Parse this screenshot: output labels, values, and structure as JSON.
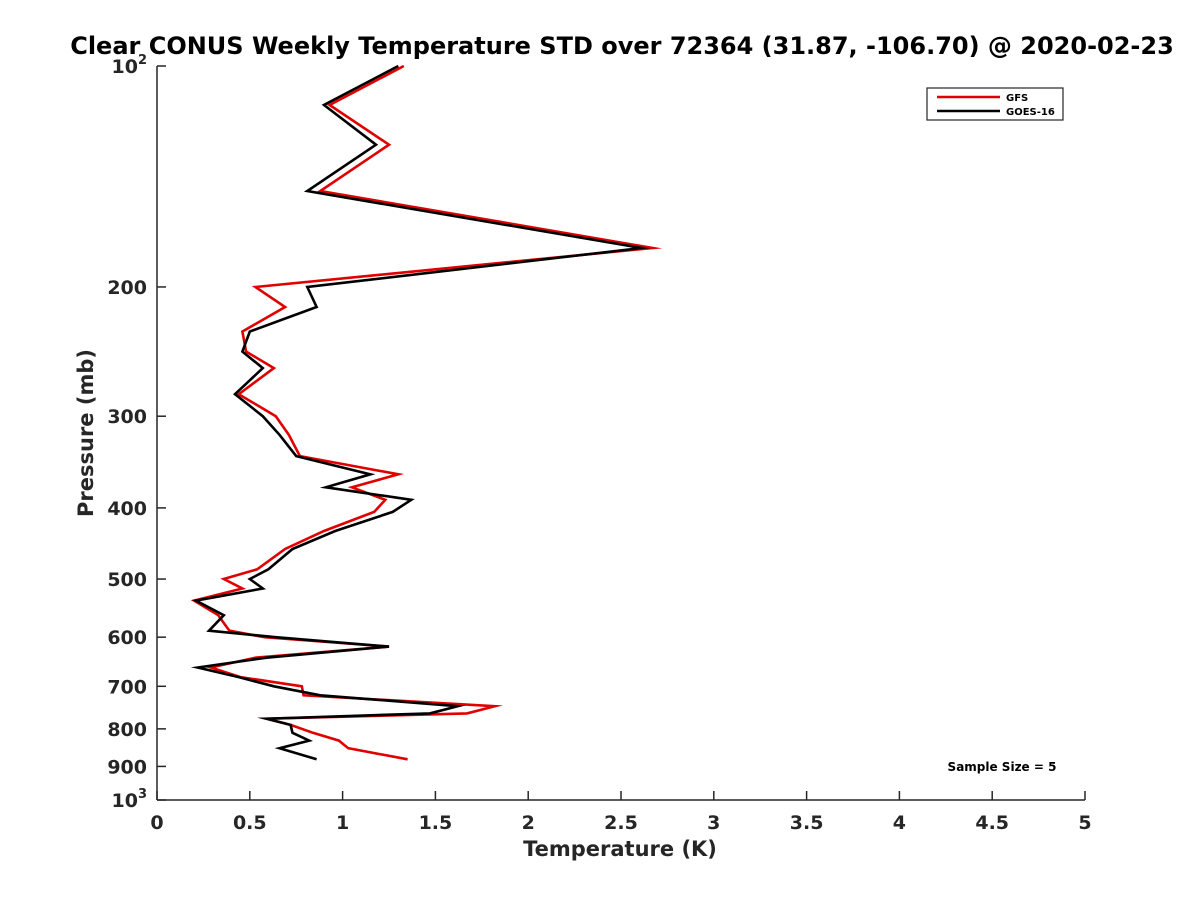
{
  "chart_data": {
    "type": "line",
    "title": "Clear CONUS Weekly Temperature STD over 72364 (31.87, -106.70) @ 2020-02-23",
    "xlabel": "Temperature (K)",
    "ylabel": "Pressure (mb)",
    "xlim": [
      0,
      5
    ],
    "ylim": [
      100,
      1000
    ],
    "y_scale": "log",
    "y_reversed": true,
    "x_ticks": [
      "0",
      "0.5",
      "1",
      "1.5",
      "2",
      "2.5",
      "3",
      "3.5",
      "4",
      "4.5",
      "5"
    ],
    "x_tick_values": [
      0,
      0.5,
      1,
      1.5,
      2,
      2.5,
      3,
      3.5,
      4,
      4.5,
      5
    ],
    "y_ticks": [
      {
        "value": 100,
        "base": "10",
        "exp": "2"
      },
      {
        "value": 200,
        "label": "200"
      },
      {
        "value": 300,
        "label": "300"
      },
      {
        "value": 400,
        "label": "400"
      },
      {
        "value": 500,
        "label": "500"
      },
      {
        "value": 600,
        "label": "600"
      },
      {
        "value": 700,
        "label": "700"
      },
      {
        "value": 800,
        "label": "800"
      },
      {
        "value": 900,
        "label": "900"
      },
      {
        "value": 1000,
        "base": "10",
        "exp": "3"
      }
    ],
    "grid": false,
    "legend_position": "top-right",
    "annotation": "Sample Size = 5",
    "series": [
      {
        "name": "GFS",
        "color": "#e00000",
        "points": [
          [
            1.33,
            100
          ],
          [
            0.93,
            113
          ],
          [
            1.25,
            128
          ],
          [
            0.88,
            148
          ],
          [
            2.67,
            177
          ],
          [
            0.53,
            200
          ],
          [
            0.69,
            213
          ],
          [
            0.46,
            230
          ],
          [
            0.48,
            245
          ],
          [
            0.63,
            258
          ],
          [
            0.44,
            280
          ],
          [
            0.64,
            300
          ],
          [
            0.71,
            318
          ],
          [
            0.77,
            340
          ],
          [
            1.3,
            360
          ],
          [
            1.05,
            375
          ],
          [
            1.23,
            390
          ],
          [
            1.17,
            405
          ],
          [
            0.9,
            430
          ],
          [
            0.69,
            455
          ],
          [
            0.54,
            485
          ],
          [
            0.36,
            500
          ],
          [
            0.46,
            515
          ],
          [
            0.2,
            535
          ],
          [
            0.33,
            560
          ],
          [
            0.39,
            588
          ],
          [
            0.58,
            600
          ],
          [
            1.25,
            618
          ],
          [
            0.53,
            640
          ],
          [
            0.29,
            660
          ],
          [
            0.45,
            680
          ],
          [
            0.78,
            700
          ],
          [
            0.79,
            720
          ],
          [
            1.82,
            745
          ],
          [
            1.67,
            762
          ],
          [
            0.59,
            775
          ],
          [
            0.72,
            790
          ],
          [
            0.84,
            810
          ],
          [
            0.98,
            830
          ],
          [
            1.03,
            850
          ],
          [
            1.35,
            880
          ]
        ]
      },
      {
        "name": "GOES-16",
        "color": "#000000",
        "points": [
          [
            1.3,
            100
          ],
          [
            0.9,
            113
          ],
          [
            1.18,
            128
          ],
          [
            0.81,
            148
          ],
          [
            2.61,
            177
          ],
          [
            0.81,
            200
          ],
          [
            0.86,
            213
          ],
          [
            0.5,
            230
          ],
          [
            0.46,
            245
          ],
          [
            0.57,
            258
          ],
          [
            0.42,
            280
          ],
          [
            0.57,
            300
          ],
          [
            0.66,
            318
          ],
          [
            0.75,
            340
          ],
          [
            1.15,
            360
          ],
          [
            0.91,
            375
          ],
          [
            1.37,
            390
          ],
          [
            1.27,
            405
          ],
          [
            0.96,
            430
          ],
          [
            0.73,
            455
          ],
          [
            0.6,
            485
          ],
          [
            0.5,
            500
          ],
          [
            0.57,
            515
          ],
          [
            0.21,
            535
          ],
          [
            0.36,
            560
          ],
          [
            0.28,
            588
          ],
          [
            0.64,
            600
          ],
          [
            1.25,
            618
          ],
          [
            0.59,
            640
          ],
          [
            0.22,
            660
          ],
          [
            0.44,
            680
          ],
          [
            0.63,
            700
          ],
          [
            0.88,
            720
          ],
          [
            1.62,
            745
          ],
          [
            1.47,
            762
          ],
          [
            0.59,
            775
          ],
          [
            0.72,
            790
          ],
          [
            0.73,
            810
          ],
          [
            0.82,
            830
          ],
          [
            0.66,
            850
          ],
          [
            0.86,
            880
          ]
        ]
      }
    ]
  }
}
